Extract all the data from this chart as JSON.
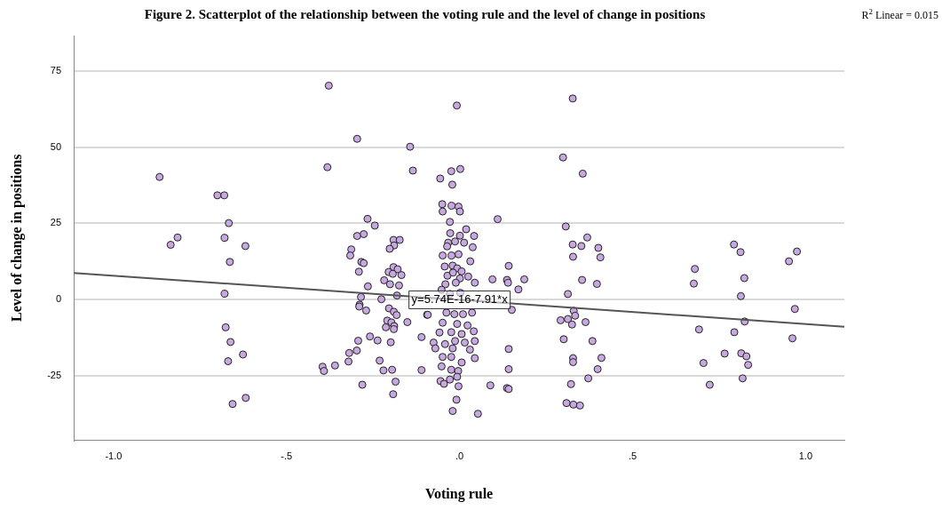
{
  "chart_data": {
    "type": "scatter",
    "title": "Figure 2. Scatterplot of the relationship between the voting rule and the level of change in positions",
    "xlabel": "Voting rule",
    "ylabel": "Level of change in positions",
    "xlim": [
      -1.115,
      1.112
    ],
    "xticks": [
      {
        "value": -1,
        "label": "-1.0"
      },
      {
        "value": -0.5,
        "label": "-.5"
      },
      {
        "value": 0,
        "label": ".0"
      },
      {
        "value": 0.5,
        "label": ".5"
      },
      {
        "value": 1,
        "label": "1.0"
      }
    ],
    "ylim": [
      -46,
      86.5
    ],
    "yticks": [
      -25,
      0,
      25,
      50,
      75
    ],
    "grid": "y",
    "legend": false,
    "annotations": [
      "R$^{2}$ Linear = 0.015",
      {
        "text": "y=5.74E-16-7.91*x",
        "x": 0,
        "y": 0
      }
    ],
    "series": [
      {
        "type": "scatter",
        "marker": "circle",
        "color": "#c8a8e0",
        "x": [
          -0.867,
          -0.7,
          -0.68,
          -0.667,
          -0.815,
          -0.835,
          -0.679,
          -0.619,
          -0.664,
          -0.679,
          -0.676,
          -0.662,
          -0.626,
          -0.669,
          -0.618,
          -0.656,
          -0.378,
          -0.296,
          -0.143,
          -0.382,
          -0.135,
          -0.266,
          -0.245,
          -0.296,
          -0.277,
          -0.313,
          -0.316,
          -0.284,
          -0.277,
          -0.291,
          -0.265,
          -0.285,
          -0.289,
          -0.29,
          -0.27,
          -0.191,
          -0.173,
          -0.189,
          -0.202,
          -0.191,
          -0.179,
          -0.168,
          -0.205,
          -0.218,
          -0.193,
          -0.201,
          -0.175,
          -0.181,
          -0.226,
          -0.204,
          -0.19,
          -0.182,
          -0.151,
          -0.209,
          -0.197,
          -0.189,
          -0.213,
          -0.19,
          -0.094,
          -0.11,
          -0.259,
          -0.237,
          -0.293,
          -0.199,
          -0.297,
          -0.319,
          -0.321,
          -0.231,
          -0.36,
          -0.396,
          -0.392,
          -0.22,
          -0.195,
          -0.11,
          -0.281,
          -0.185,
          -0.192,
          -0.008,
          -0.024,
          0.002,
          -0.056,
          -0.021,
          -0.05,
          -0.049,
          -0.023,
          -0.003,
          0.001,
          0.11,
          -0.028,
          0.019,
          -0.027,
          0.001,
          0.042,
          -0.033,
          -0.013,
          0.013,
          0.038,
          -0.036,
          -0.049,
          -0.023,
          -0.003,
          -0.043,
          -0.02,
          0.031,
          -0.007,
          0.006,
          0.142,
          -0.035,
          -0.019,
          0.025,
          0.001,
          0.095,
          0.137,
          0.187,
          -0.041,
          -0.011,
          0.044,
          0.14,
          0.17,
          0.151,
          -0.052,
          -0.028,
          0.002,
          -0.092,
          -0.038,
          -0.015,
          0.01,
          0.036,
          -0.049,
          -0.007,
          0.023,
          -0.058,
          -0.024,
          0.006,
          0.041,
          -0.042,
          -0.013,
          0.015,
          0.044,
          -0.075,
          -0.07,
          -0.02,
          0.03,
          0.044,
          0.142,
          -0.049,
          -0.024,
          0.006,
          0.142,
          -0.052,
          -0.024,
          -0.004,
          -0.055,
          -0.045,
          -0.028,
          -0.007,
          -0.003,
          0.089,
          0.137,
          0.142,
          -0.009,
          -0.02,
          0.053,
          0.327,
          0.299,
          0.356,
          0.307,
          0.369,
          0.327,
          0.352,
          0.401,
          0.407,
          0.328,
          0.354,
          0.397,
          0.313,
          0.33,
          0.334,
          0.292,
          0.313,
          0.325,
          0.364,
          0.301,
          0.384,
          0.328,
          0.328,
          0.41,
          0.399,
          0.372,
          0.322,
          0.309,
          0.329,
          0.348,
          0.793,
          0.812,
          0.975,
          0.952,
          0.68,
          0.677,
          0.823,
          0.813,
          0.969,
          0.824,
          0.692,
          0.794,
          0.962,
          0.766,
          0.814,
          0.829,
          0.705,
          0.834,
          0.818,
          0.723
        ],
        "values": [
          40.2,
          34.2,
          34.2,
          25.1,
          20.4,
          18.0,
          20.3,
          17.6,
          12.4,
          2.0,
          -9.0,
          -13.8,
          -17.9,
          -20.1,
          -32.1,
          -34.1,
          70.1,
          52.7,
          50.1,
          43.4,
          42.3,
          26.5,
          24.3,
          20.9,
          21.5,
          16.5,
          14.5,
          12.4,
          12.0,
          9.2,
          4.4,
          0.9,
          -1.6,
          -2.2,
          -3.5,
          19.6,
          19.6,
          17.8,
          16.7,
          10.7,
          10.0,
          8.1,
          9.1,
          6.4,
          8.5,
          5.1,
          4.7,
          1.4,
          0.2,
          -2.8,
          -3.9,
          -5.0,
          -7.3,
          -6.8,
          -7.4,
          -8.6,
          -9.0,
          -9.6,
          -4.9,
          -12.2,
          -12.0,
          -13.3,
          -13.4,
          -13.9,
          -16.6,
          -17.4,
          -20.2,
          -19.9,
          -21.5,
          -21.9,
          -23.3,
          -23.1,
          -22.9,
          -23.0,
          -27.8,
          -26.8,
          -30.9,
          63.6,
          42.1,
          42.8,
          39.7,
          37.7,
          31.3,
          28.9,
          30.8,
          30.5,
          28.9,
          26.4,
          25.5,
          23.1,
          21.8,
          21.0,
          20.9,
          18.7,
          19.1,
          18.7,
          17.2,
          17.5,
          14.5,
          14.5,
          14.9,
          10.9,
          11.2,
          12.6,
          10.3,
          9.3,
          11.1,
          7.9,
          8.9,
          7.6,
          7.0,
          6.7,
          6.5,
          6.7,
          5.1,
          5.6,
          5.6,
          5.6,
          3.4,
          -3.3,
          3.3,
          1.9,
          2.3,
          -4.9,
          -4.2,
          -4.7,
          -4.7,
          -4.2,
          -7.5,
          -7.9,
          -8.4,
          -10.7,
          -10.6,
          -11.2,
          -10.3,
          -14.5,
          -13.5,
          -14.0,
          -13.5,
          -14.0,
          -15.9,
          -15.9,
          -16.3,
          -19.1,
          -16.1,
          -18.7,
          -18.7,
          -20.5,
          -22.7,
          -21.8,
          -22.9,
          -23.3,
          -26.6,
          -27.5,
          -26.1,
          -25.2,
          -28.3,
          -28.0,
          -28.9,
          -29.2,
          -32.7,
          -36.4,
          -37.3,
          65.9,
          46.6,
          41.3,
          24.0,
          20.4,
          18.1,
          17.6,
          17.0,
          13.9,
          14.1,
          6.5,
          5.2,
          1.9,
          -3.6,
          -5.2,
          -6.7,
          -6.3,
          -8.1,
          -7.3,
          -12.9,
          -13.5,
          -19.1,
          -20.4,
          -19.0,
          -22.7,
          -25.7,
          -27.6,
          -33.8,
          -34.3,
          -34.6,
          18.1,
          15.6,
          15.8,
          12.6,
          10.1,
          5.3,
          7.1,
          1.2,
          -3.0,
          -7.1,
          -9.7,
          -10.6,
          -12.6,
          -17.6,
          -17.5,
          -18.5,
          -20.7,
          -21.3,
          -25.7,
          -27.8
        ]
      },
      {
        "type": "line",
        "marker": "none",
        "color": "#555555",
        "x": [
          -1.115,
          1.112
        ],
        "values": [
          8.8,
          -8.8
        ]
      }
    ]
  }
}
